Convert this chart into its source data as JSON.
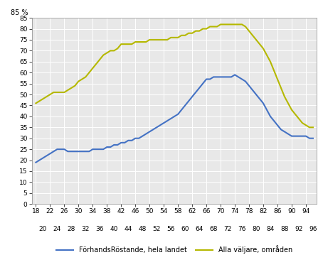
{
  "ylabel": "85 %",
  "background_color": "#ffffff",
  "plot_bg_color": "#e8e8e8",
  "grid_color": "#ffffff",
  "x_top_ticks": [
    18,
    22,
    26,
    30,
    34,
    38,
    42,
    46,
    50,
    54,
    58,
    62,
    66,
    70,
    74,
    78,
    82,
    86,
    90,
    94
  ],
  "x_bottom_ticks": [
    20,
    24,
    28,
    32,
    36,
    40,
    44,
    48,
    52,
    56,
    60,
    64,
    68,
    72,
    76,
    80,
    84,
    88,
    92,
    96
  ],
  "ylim": [
    0,
    85
  ],
  "yticks": [
    0,
    5,
    10,
    15,
    20,
    25,
    30,
    35,
    40,
    45,
    50,
    55,
    60,
    65,
    70,
    75,
    80,
    85
  ],
  "line1_color": "#4472C4",
  "line2_color": "#b5b800",
  "line1_label": "FörhandsRöstande, hela landet",
  "line2_label": "Alla väljare, områden",
  "ages": [
    18,
    19,
    20,
    21,
    22,
    23,
    24,
    25,
    26,
    27,
    28,
    29,
    30,
    31,
    32,
    33,
    34,
    35,
    36,
    37,
    38,
    39,
    40,
    41,
    42,
    43,
    44,
    45,
    46,
    47,
    48,
    49,
    50,
    51,
    52,
    53,
    54,
    55,
    56,
    57,
    58,
    59,
    60,
    61,
    62,
    63,
    64,
    65,
    66,
    67,
    68,
    69,
    70,
    71,
    72,
    73,
    74,
    75,
    76,
    77,
    78,
    79,
    80,
    81,
    82,
    83,
    84,
    85,
    86,
    87,
    88,
    89,
    90,
    91,
    92,
    93,
    94,
    95,
    96
  ],
  "blue_values": [
    19,
    20,
    21,
    22,
    23,
    24,
    25,
    25,
    25,
    24,
    24,
    24,
    24,
    24,
    24,
    24,
    25,
    25,
    25,
    25,
    26,
    26,
    27,
    27,
    28,
    28,
    29,
    29,
    30,
    30,
    31,
    32,
    33,
    34,
    35,
    36,
    37,
    38,
    39,
    40,
    41,
    43,
    45,
    47,
    49,
    51,
    53,
    55,
    57,
    57,
    58,
    58,
    58,
    58,
    58,
    58,
    59,
    58,
    57,
    56,
    54,
    52,
    50,
    48,
    46,
    43,
    40,
    38,
    36,
    34,
    33,
    32,
    31,
    31,
    31,
    31,
    31,
    30,
    30
  ],
  "yellow_values": [
    46,
    47,
    48,
    49,
    50,
    51,
    51,
    51,
    51,
    52,
    53,
    54,
    56,
    57,
    58,
    60,
    62,
    64,
    66,
    68,
    69,
    70,
    70,
    71,
    73,
    73,
    73,
    73,
    74,
    74,
    74,
    74,
    75,
    75,
    75,
    75,
    75,
    75,
    76,
    76,
    76,
    77,
    77,
    78,
    78,
    79,
    79,
    80,
    80,
    81,
    81,
    81,
    82,
    82,
    82,
    82,
    82,
    82,
    82,
    81,
    79,
    77,
    75,
    73,
    71,
    68,
    65,
    61,
    57,
    53,
    49,
    46,
    43,
    41,
    39,
    37,
    36,
    35,
    35
  ]
}
